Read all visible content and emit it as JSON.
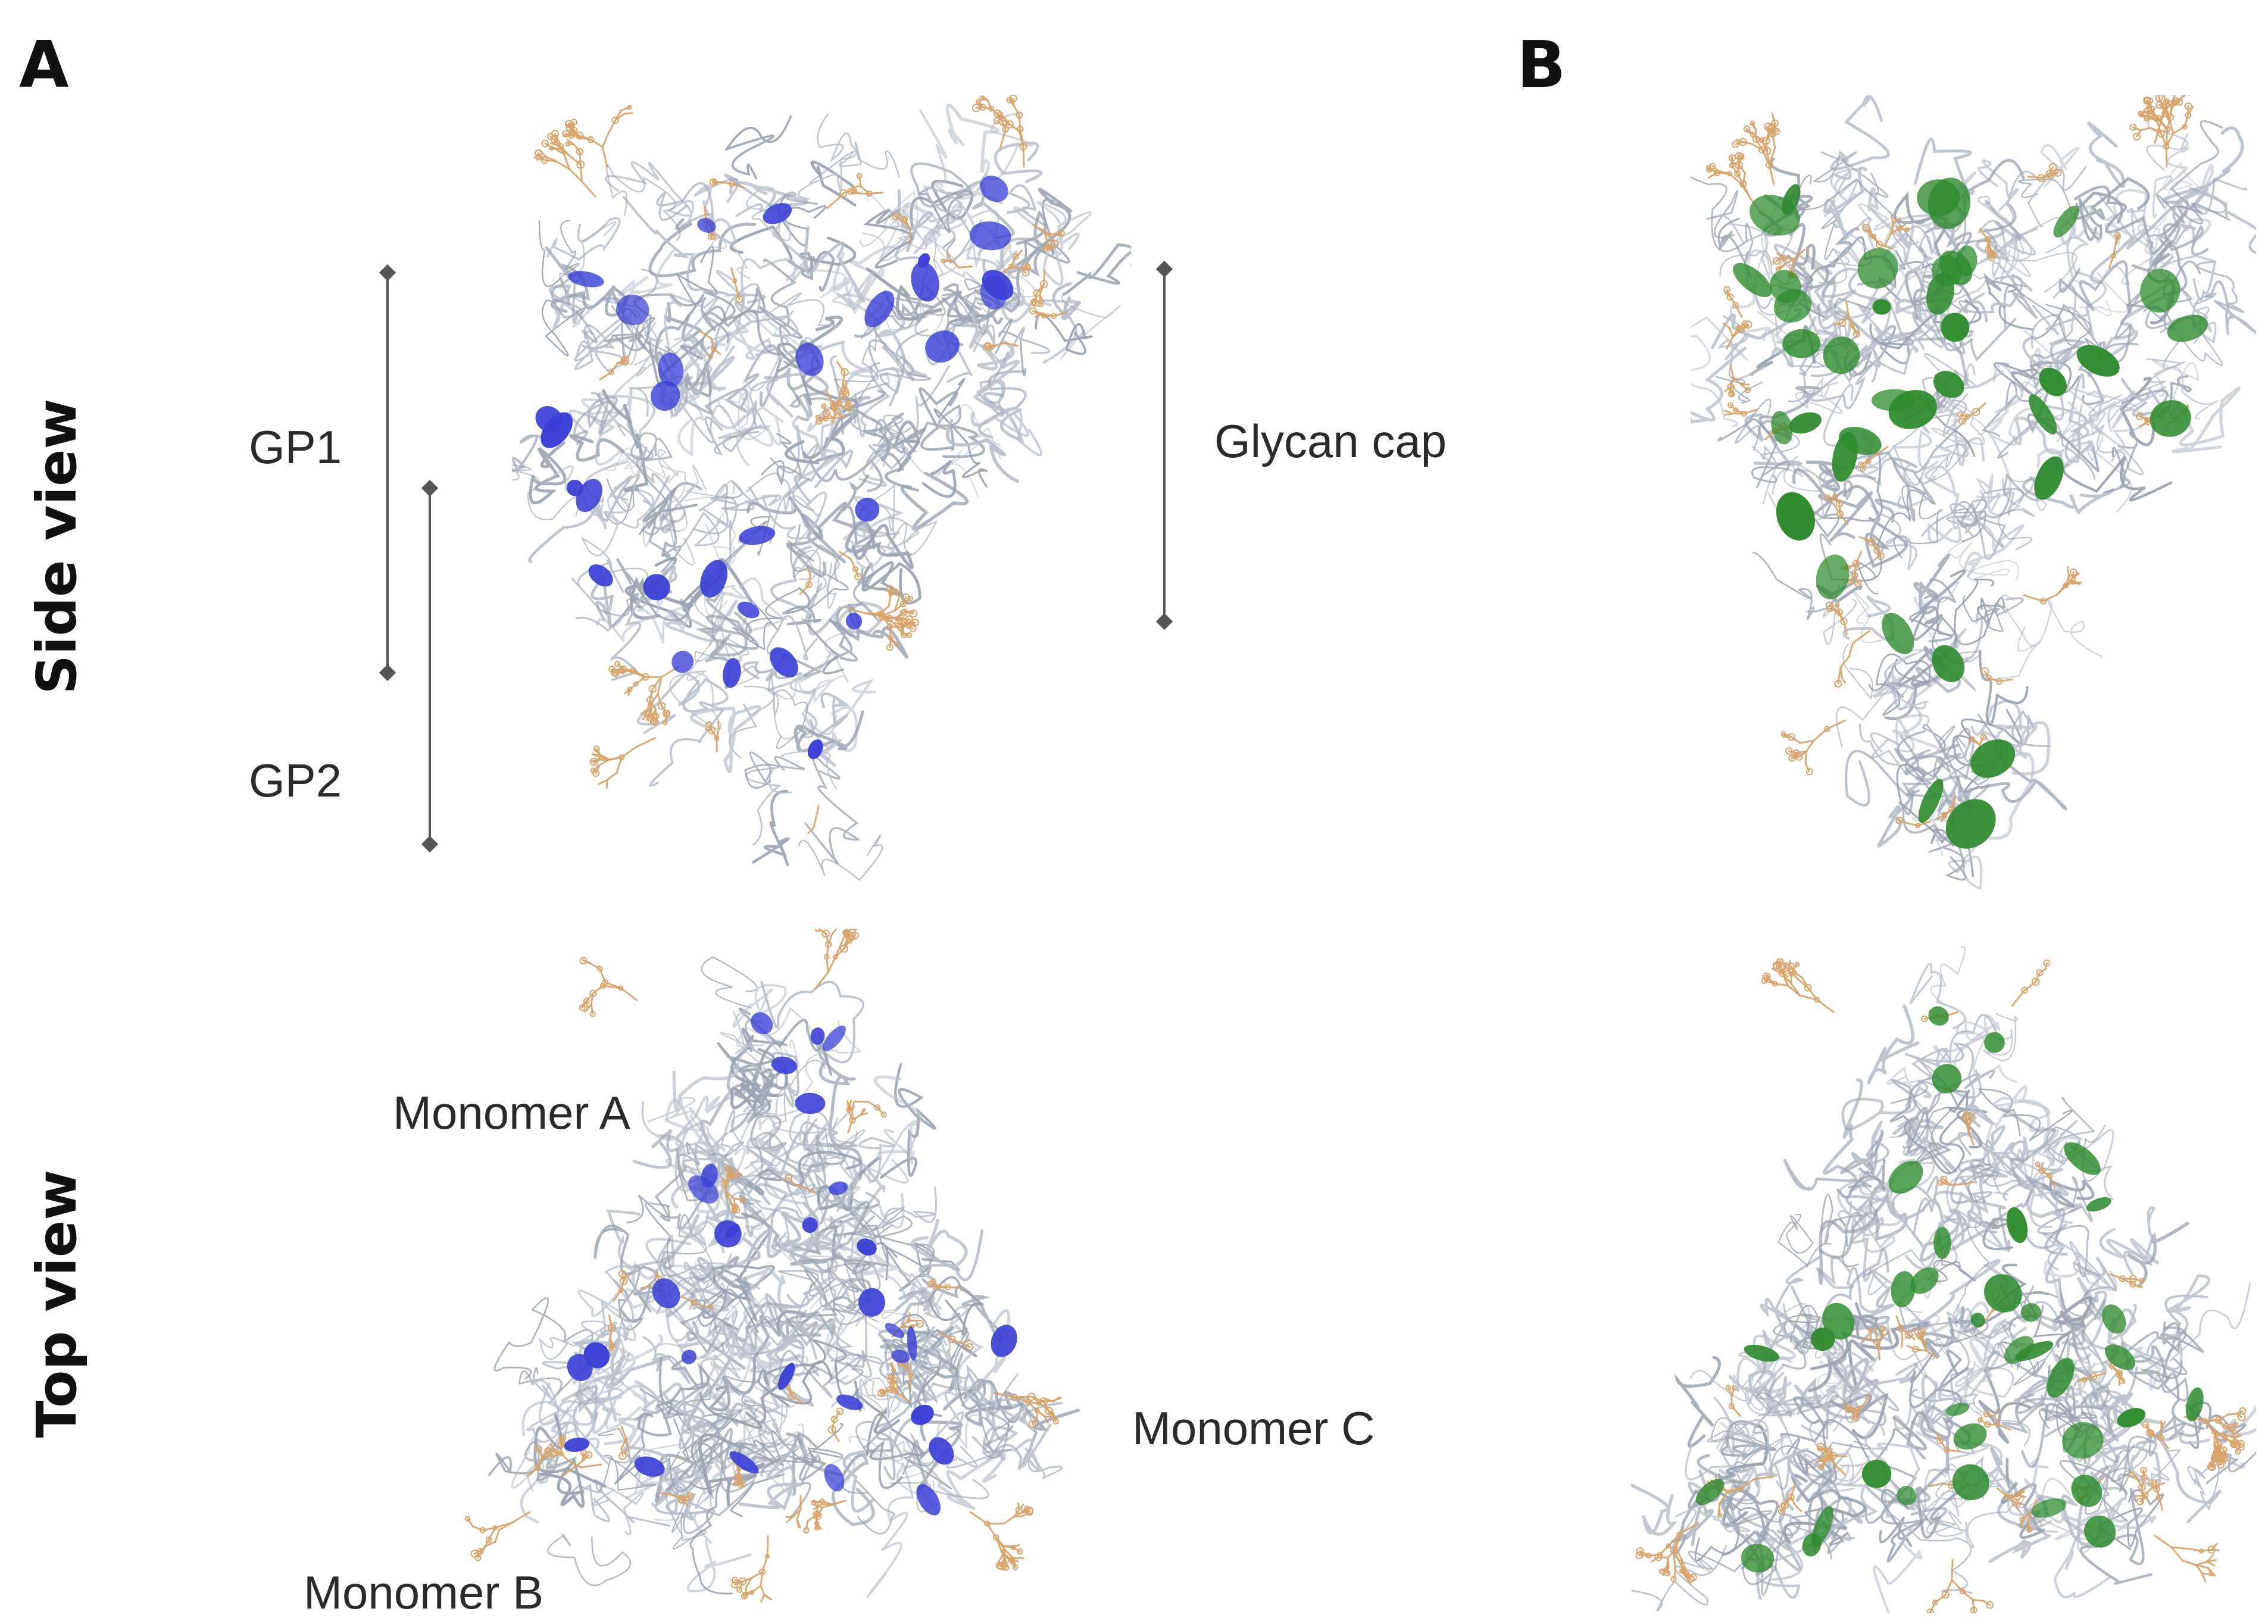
{
  "panels": {
    "a": "A",
    "b": "B"
  },
  "rows": {
    "side": "Side view",
    "top": "Top view"
  },
  "annotations": {
    "gp1": "GP1",
    "gp2": "GP2",
    "glycan_cap": "Glycan cap",
    "monomer_a": "Monomer A",
    "monomer_b": "Monomer B",
    "monomer_c": "Monomer C"
  },
  "colors": {
    "highlight_a": "#3b3fd6",
    "highlight_b": "#2e8b2e",
    "glycan": "#d9a46a",
    "backbone": "#b9c0cc",
    "text": "#2a2a2a"
  }
}
